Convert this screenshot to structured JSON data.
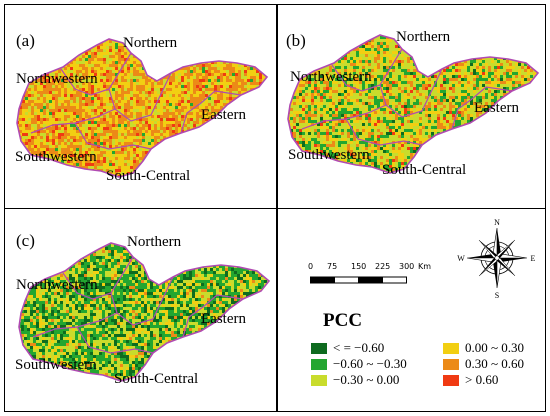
{
  "colors": {
    "class1": "#0e6b1f",
    "class2": "#23a630",
    "class3": "#c9dc2c",
    "class4": "#f2cf12",
    "class5": "#ec8a17",
    "class6": "#f03a12",
    "boundary": "#b04ab2"
  },
  "panels": [
    {
      "label": "(a)",
      "regions": {
        "northern": "Northern",
        "northwestern": "Northwestern",
        "eastern": "Eastern",
        "southwestern": "Southwestern",
        "south_central": "South-Central"
      }
    },
    {
      "label": "(b)",
      "regions": {
        "northern": "Northern",
        "northwestern": "Northwestern",
        "eastern": "Eastern",
        "southwestern": "Southwestern",
        "south_central": "South-Central"
      }
    },
    {
      "label": "(c)",
      "regions": {
        "northern": "Northern",
        "northwestern": "Northwestern",
        "eastern": "Eastern",
        "southwestern": "Southwestern",
        "south_central": "South-Central"
      }
    }
  ],
  "compass": {
    "n": "N",
    "s": "S",
    "e": "E",
    "w": "W"
  },
  "scale": {
    "ticks": [
      "0",
      "75",
      "150",
      "225",
      "300"
    ],
    "unit": "Km"
  },
  "legend": {
    "title": "PCC",
    "items": [
      {
        "label": "< = −0.60",
        "color": "#0e6b1f"
      },
      {
        "label": "−0.60 ~ −0.30",
        "color": "#23a630"
      },
      {
        "label": "−0.30 ~ 0.00",
        "color": "#c9dc2c"
      },
      {
        "label": "0.00 ~ 0.30",
        "color": "#f2cf12"
      },
      {
        "label": "0.30 ~ 0.60",
        "color": "#ec8a17"
      },
      {
        "label": "> 0.60",
        "color": "#f03a12"
      }
    ]
  },
  "map_mix": [
    {
      "class4": 0.34,
      "class5": 0.38,
      "class3": 0.16,
      "class6": 0.1,
      "class2": 0.02
    },
    {
      "class3": 0.36,
      "class4": 0.22,
      "class5": 0.16,
      "class2": 0.18,
      "class6": 0.04,
      "class1": 0.04
    },
    {
      "class2": 0.34,
      "class3": 0.3,
      "class1": 0.18,
      "class4": 0.12,
      "class5": 0.06
    }
  ]
}
